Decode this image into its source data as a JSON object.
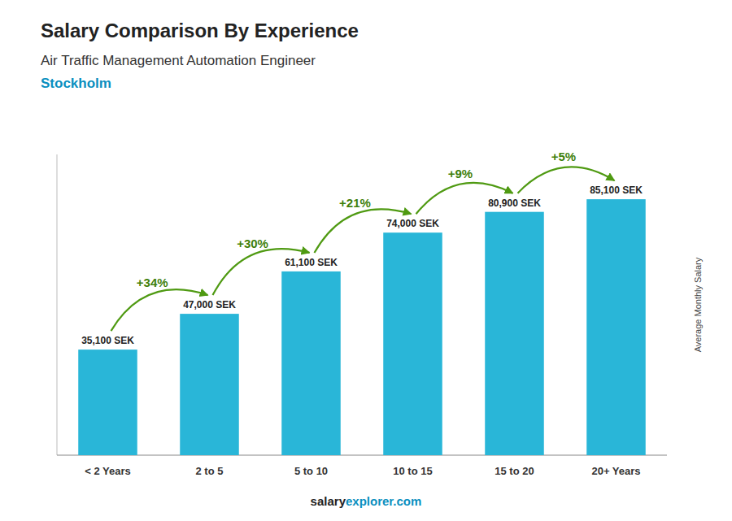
{
  "chart_data": {
    "type": "bar",
    "title": "Salary Comparison By Experience",
    "subtitle": [
      "Air Traffic Management Automation Engineer",
      "Stockholm"
    ],
    "categories": [
      "< 2 Years",
      "2 to 5",
      "5 to 10",
      "10 to 15",
      "15 to 20",
      "20+ Years"
    ],
    "values": [
      35100,
      47000,
      61100,
      74000,
      80900,
      85100
    ],
    "value_labels": [
      "35,100 SEK",
      "47,000 SEK",
      "61,100 SEK",
      "74,000 SEK",
      "80,900 SEK",
      "85,100 SEK"
    ],
    "data_labels": true,
    "annotations": [
      "+34%",
      "+30%",
      "+21%",
      "+9%",
      "+5%"
    ],
    "ylabel": "Average Monthly Salary",
    "footer": [
      "salary",
      "explorer.com"
    ],
    "color": "#29b6d8",
    "ylim": [
      0,
      100000
    ],
    "grid": false,
    "tick_labels": "x"
  }
}
